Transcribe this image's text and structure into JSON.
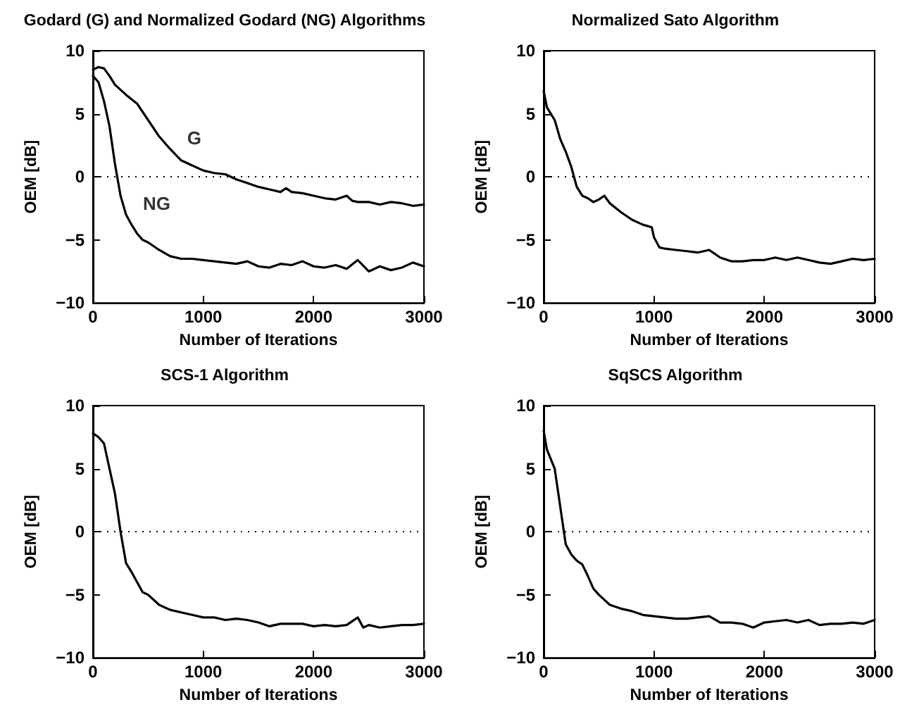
{
  "chart_data": [
    {
      "type": "line",
      "title": "Godard (G) and Normalized Godard (NG) Algorithms",
      "xlabel": "Number of Iterations",
      "ylabel": "OEM [dB]",
      "xlim": [
        0,
        3000
      ],
      "xticks": [
        0,
        1000,
        2000,
        3000
      ],
      "ylim": [
        -10,
        10
      ],
      "yticks": [
        -10,
        -5,
        0,
        5,
        10
      ],
      "grid": false,
      "marker": "none",
      "line_style": "solid",
      "ref_lines": [
        {
          "axis": "y",
          "value": 0,
          "color": "#000000",
          "line_style": "dotted"
        }
      ],
      "annotations": [
        {
          "text": "G",
          "x": 700,
          "y": 2.2
        },
        {
          "text": "NG",
          "x": 300,
          "y": -3
        }
      ],
      "series": [
        {
          "color": "#000000",
          "x": [
            0,
            50,
            100,
            150,
            200,
            300,
            400,
            500,
            600,
            700,
            800,
            900,
            1000,
            1100,
            1200,
            1300,
            1400,
            1500,
            1600,
            1700,
            1750,
            1800,
            1900,
            2000,
            2100,
            2200,
            2300,
            2350,
            2400,
            2500,
            2600,
            2700,
            2800,
            2900,
            3000
          ],
          "values": [
            8.5,
            8.7,
            8.6,
            8,
            7.3,
            6.5,
            5.8,
            4.5,
            3.2,
            2.2,
            1.3,
            0.9,
            0.5,
            0.3,
            0.2,
            -0.2,
            -0.5,
            -0.8,
            -1,
            -1.2,
            -0.9,
            -1.2,
            -1.3,
            -1.5,
            -1.7,
            -1.8,
            -1.5,
            -1.9,
            -2,
            -2,
            -2.2,
            -2,
            -2.1,
            -2.3,
            -2.2
          ]
        },
        {
          "color": "#000000",
          "x": [
            0,
            50,
            100,
            150,
            200,
            250,
            300,
            350,
            400,
            450,
            500,
            600,
            700,
            800,
            900,
            1000,
            1100,
            1200,
            1300,
            1400,
            1500,
            1600,
            1700,
            1800,
            1900,
            2000,
            2100,
            2200,
            2300,
            2400,
            2500,
            2600,
            2700,
            2800,
            2900,
            3000
          ],
          "values": [
            8,
            7.5,
            6,
            4,
            1,
            -1.5,
            -3,
            -3.8,
            -4.5,
            -5,
            -5.2,
            -5.8,
            -6.3,
            -6.5,
            -6.5,
            -6.6,
            -6.7,
            -6.8,
            -6.9,
            -6.7,
            -7.1,
            -7.2,
            -6.9,
            -7,
            -6.7,
            -7.1,
            -7.2,
            -7,
            -7.3,
            -6.6,
            -7.5,
            -7.1,
            -7.4,
            -7.2,
            -6.8,
            -7.1
          ]
        }
      ]
    },
    {
      "type": "line",
      "title": "Normalized Sato Algorithm",
      "xlabel": "Number of Iterations",
      "ylabel": "OEM [dB]",
      "xlim": [
        0,
        3000
      ],
      "xticks": [
        0,
        1000,
        2000,
        3000
      ],
      "ylim": [
        -10,
        10
      ],
      "yticks": [
        -10,
        -5,
        0,
        5,
        10
      ],
      "grid": false,
      "marker": "none",
      "line_style": "solid",
      "ref_lines": [
        {
          "axis": "y",
          "value": 0,
          "color": "#000000",
          "line_style": "dotted"
        }
      ],
      "series": [
        {
          "color": "#000000",
          "x": [
            0,
            30,
            100,
            150,
            200,
            250,
            300,
            350,
            400,
            450,
            500,
            550,
            600,
            700,
            800,
            900,
            980,
            1000,
            1050,
            1100,
            1200,
            1300,
            1400,
            1500,
            1600,
            1700,
            1800,
            1900,
            2000,
            2100,
            2200,
            2300,
            2400,
            2500,
            2600,
            2700,
            2800,
            2900,
            3000
          ],
          "values": [
            6.8,
            5.5,
            4.5,
            3,
            2,
            0.8,
            -0.8,
            -1.5,
            -1.7,
            -2,
            -1.8,
            -1.5,
            -2.1,
            -2.8,
            -3.4,
            -3.8,
            -4,
            -4.8,
            -5.6,
            -5.7,
            -5.8,
            -5.9,
            -6,
            -5.8,
            -6.4,
            -6.7,
            -6.7,
            -6.6,
            -6.6,
            -6.4,
            -6.6,
            -6.4,
            -6.6,
            -6.8,
            -6.9,
            -6.7,
            -6.5,
            -6.6,
            -6.5
          ]
        }
      ]
    },
    {
      "type": "line",
      "title": "SCS-1 Algorithm",
      "xlabel": "Number of Iterations",
      "ylabel": "OEM [dB]",
      "xlim": [
        0,
        3000
      ],
      "xticks": [
        0,
        1000,
        2000,
        3000
      ],
      "ylim": [
        -10,
        10
      ],
      "yticks": [
        -10,
        -5,
        0,
        5,
        10
      ],
      "grid": false,
      "marker": "none",
      "line_style": "solid",
      "ref_lines": [
        {
          "axis": "y",
          "value": 0,
          "color": "#000000",
          "line_style": "dotted"
        }
      ],
      "series": [
        {
          "color": "#000000",
          "x": [
            0,
            50,
            100,
            150,
            200,
            250,
            300,
            350,
            400,
            450,
            500,
            600,
            700,
            800,
            900,
            1000,
            1100,
            1200,
            1300,
            1400,
            1500,
            1600,
            1700,
            1800,
            1900,
            2000,
            2100,
            2200,
            2300,
            2400,
            2450,
            2500,
            2600,
            2700,
            2800,
            2900,
            3000
          ],
          "values": [
            7.8,
            7.5,
            7,
            5,
            3,
            0,
            -2.5,
            -3.2,
            -4,
            -4.8,
            -5,
            -5.8,
            -6.2,
            -6.4,
            -6.6,
            -6.8,
            -6.8,
            -7,
            -6.9,
            -7,
            -7.2,
            -7.5,
            -7.3,
            -7.3,
            -7.3,
            -7.5,
            -7.4,
            -7.5,
            -7.4,
            -6.8,
            -7.6,
            -7.4,
            -7.6,
            -7.5,
            -7.4,
            -7.4,
            -7.3
          ]
        }
      ]
    },
    {
      "type": "line",
      "title": "SqSCS Algorithm",
      "xlabel": "Number of Iterations",
      "ylabel": "OEM [dB]",
      "xlim": [
        0,
        3000
      ],
      "xticks": [
        0,
        1000,
        2000,
        3000
      ],
      "ylim": [
        -10,
        10
      ],
      "yticks": [
        -10,
        -5,
        0,
        5,
        10
      ],
      "grid": false,
      "marker": "none",
      "line_style": "solid",
      "ref_lines": [
        {
          "axis": "y",
          "value": 0,
          "color": "#000000",
          "line_style": "dotted"
        }
      ],
      "series": [
        {
          "color": "#000000",
          "x": [
            0,
            30,
            100,
            150,
            200,
            250,
            300,
            350,
            400,
            450,
            500,
            600,
            700,
            800,
            900,
            1000,
            1100,
            1200,
            1300,
            1400,
            1500,
            1600,
            1700,
            1800,
            1900,
            2000,
            2100,
            2200,
            2300,
            2400,
            2500,
            2600,
            2700,
            2800,
            2900,
            3000
          ],
          "values": [
            8,
            6.5,
            5,
            2,
            -1,
            -1.8,
            -2.3,
            -2.6,
            -3.5,
            -4.5,
            -5,
            -5.8,
            -6.1,
            -6.3,
            -6.6,
            -6.7,
            -6.8,
            -6.9,
            -6.9,
            -6.8,
            -6.7,
            -7.2,
            -7.2,
            -7.3,
            -7.6,
            -7.2,
            -7.1,
            -7,
            -7.2,
            -7,
            -7.4,
            -7.3,
            -7.3,
            -7.2,
            -7.3,
            -7
          ]
        }
      ]
    }
  ]
}
